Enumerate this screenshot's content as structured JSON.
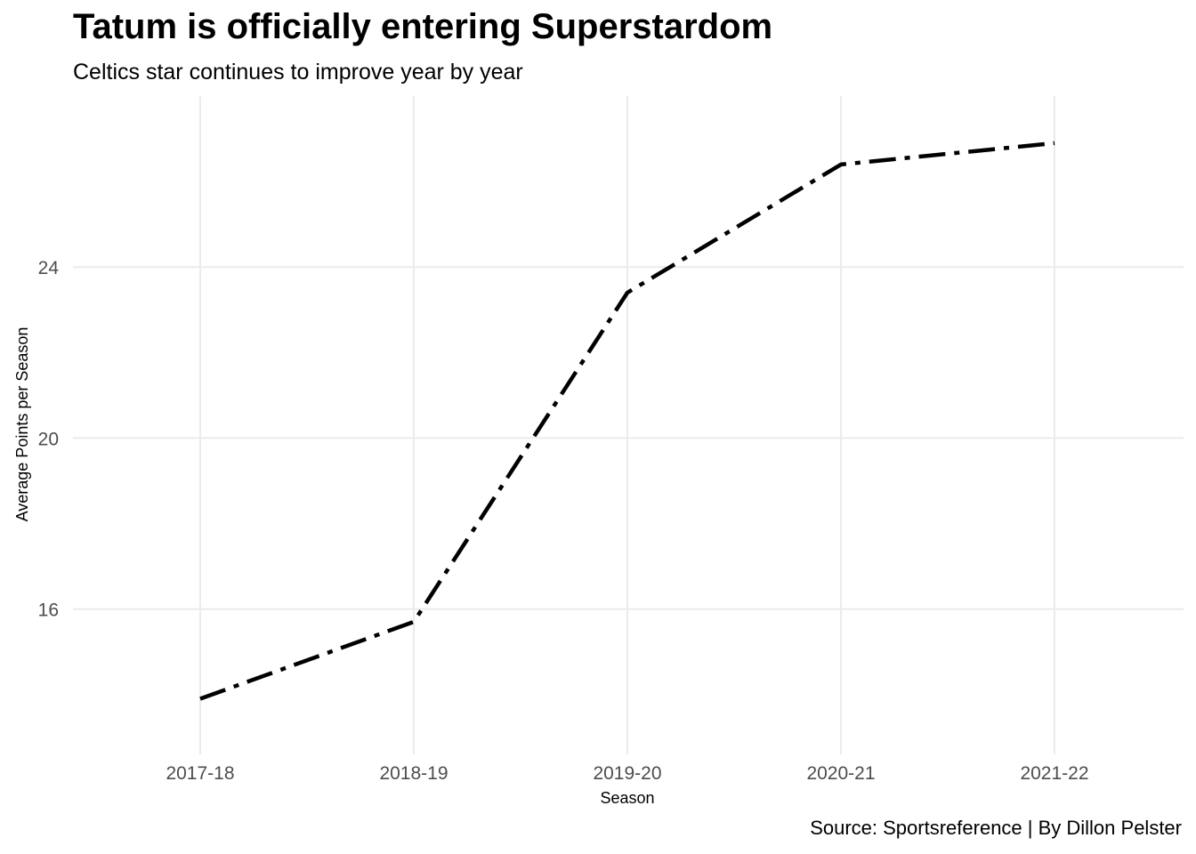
{
  "title": "Tatum is officially entering Superstardom",
  "subtitle": "Celtics star continues to improve year by year",
  "caption": "Source: Sportsreference | By Dillon Pelster",
  "chart_data": {
    "type": "line",
    "title": "Tatum is officially entering Superstardom",
    "subtitle": "Celtics star continues to improve year by year",
    "xlabel": "Season",
    "ylabel": "Average Points per Season",
    "categories": [
      "2017-18",
      "2018-19",
      "2019-20",
      "2020-21",
      "2021-22"
    ],
    "values": [
      13.9,
      15.7,
      23.4,
      26.4,
      26.9
    ],
    "yticks": [
      16,
      20,
      24
    ],
    "ylim": [
      12.6,
      28.0
    ],
    "grid": true,
    "legend": "none",
    "line_style": "dashdot",
    "line_color": "#000000",
    "grid_color": "#ebebeb"
  }
}
